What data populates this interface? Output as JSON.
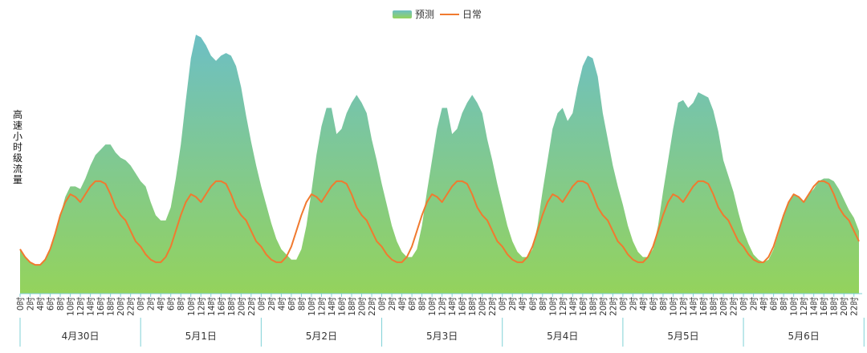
{
  "chart_data": {
    "type": "area",
    "ylabel": "高速小时级流量",
    "legend": {
      "position": "top-center",
      "items": [
        "预测",
        "日常"
      ]
    },
    "colors": {
      "forecast_top": "#6dbfc4",
      "forecast_bottom": "#94d35c",
      "daily_line": "#f07a2f",
      "axis": "#7fd1d6",
      "text": "#333333"
    },
    "ylim": [
      0,
      100
    ],
    "day_labels": [
      "4月30日",
      "5月1日",
      "5月2日",
      "5月3日",
      "5月4日",
      "5月5日",
      "5月6日"
    ],
    "hour_labels": [
      "0时",
      "2时",
      "4时",
      "6时",
      "8时",
      "10时",
      "12时",
      "14时",
      "16时",
      "18时",
      "20时",
      "22时"
    ],
    "series": [
      {
        "name": "预测",
        "values": [
          17,
          14,
          12,
          11,
          11,
          13,
          17,
          23,
          30,
          37,
          41,
          41,
          40,
          44,
          49,
          53,
          55,
          57,
          57,
          54,
          52,
          51,
          49,
          46,
          43,
          41,
          35,
          30,
          28,
          28,
          33,
          44,
          57,
          74,
          90,
          99,
          98,
          95,
          91,
          89,
          91,
          92,
          91,
          87,
          79,
          68,
          58,
          49,
          41,
          34,
          27,
          21,
          17,
          15,
          13,
          13,
          17,
          26,
          39,
          53,
          64,
          71,
          71,
          61,
          63,
          69,
          73,
          76,
          73,
          69,
          59,
          51,
          42,
          34,
          26,
          20,
          16,
          14,
          14,
          17,
          26,
          39,
          51,
          63,
          71,
          71,
          61,
          63,
          69,
          73,
          76,
          73,
          69,
          59,
          51,
          42,
          34,
          26,
          20,
          16,
          14,
          14,
          17,
          26,
          39,
          51,
          63,
          69,
          71,
          66,
          69,
          79,
          87,
          91,
          90,
          83,
          69,
          59,
          49,
          41,
          34,
          26,
          20,
          16,
          14,
          14,
          17,
          26,
          39,
          51,
          63,
          73,
          74,
          71,
          73,
          77,
          76,
          75,
          70,
          62,
          51,
          45,
          39,
          31,
          24,
          19,
          15,
          13,
          12,
          13,
          17,
          23,
          30,
          35,
          38,
          37,
          35,
          38,
          40,
          43,
          44,
          44,
          43,
          40,
          36,
          32,
          29,
          24
        ]
      },
      {
        "name": "日常",
        "values": [
          17,
          14,
          12,
          11,
          11,
          13,
          17,
          23,
          30,
          35,
          38,
          37,
          35,
          38,
          41,
          43,
          43,
          42,
          38,
          33,
          30,
          28,
          24,
          20,
          18,
          15,
          13,
          12,
          12,
          14,
          18,
          24,
          30,
          35,
          38,
          37,
          35,
          38,
          41,
          43,
          43,
          42,
          38,
          33,
          30,
          28,
          24,
          20,
          18,
          15,
          13,
          12,
          12,
          14,
          18,
          24,
          30,
          35,
          38,
          37,
          35,
          38,
          41,
          43,
          43,
          42,
          38,
          33,
          30,
          28,
          24,
          20,
          18,
          15,
          13,
          12,
          12,
          14,
          18,
          24,
          30,
          35,
          38,
          37,
          35,
          38,
          41,
          43,
          43,
          42,
          38,
          33,
          30,
          28,
          24,
          20,
          18,
          15,
          13,
          12,
          12,
          14,
          18,
          24,
          30,
          35,
          38,
          37,
          35,
          38,
          41,
          43,
          43,
          42,
          38,
          33,
          30,
          28,
          24,
          20,
          18,
          15,
          13,
          12,
          12,
          14,
          18,
          24,
          30,
          35,
          38,
          37,
          35,
          38,
          41,
          43,
          43,
          42,
          38,
          33,
          30,
          28,
          24,
          20,
          18,
          15,
          13,
          12,
          12,
          14,
          18,
          24,
          30,
          35,
          38,
          37,
          35,
          38,
          41,
          43,
          43,
          42,
          38,
          33,
          30,
          28,
          24,
          20
        ]
      }
    ]
  }
}
